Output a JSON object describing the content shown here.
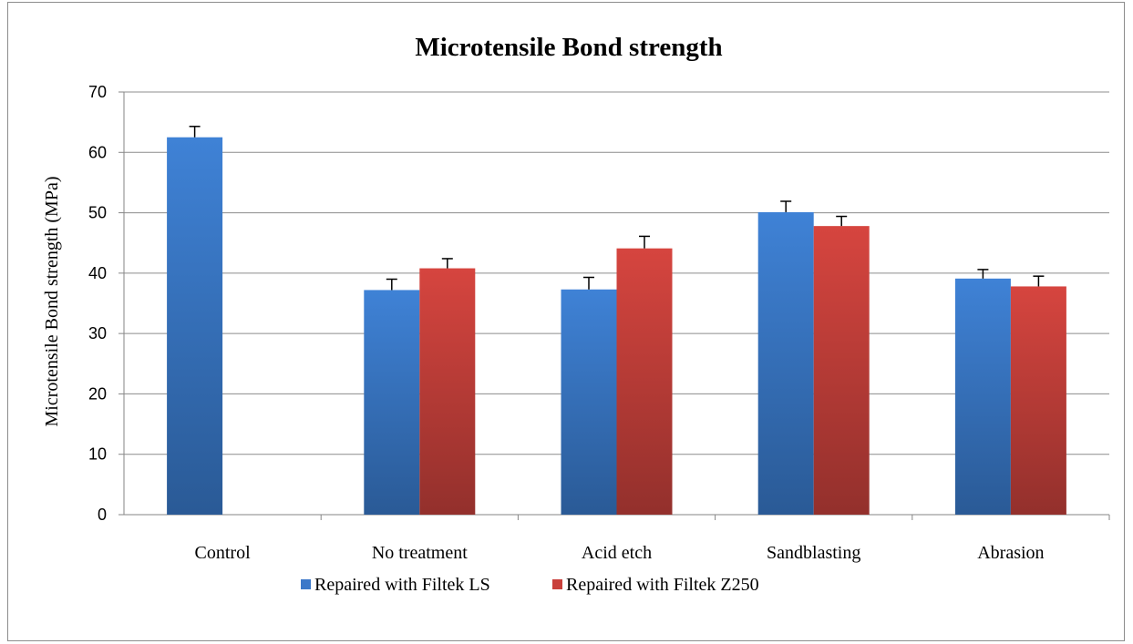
{
  "chart_data": {
    "type": "bar",
    "title": "Microtensile Bond strength",
    "xlabel": "",
    "ylabel": "Microtensile Bond strength (MPa)",
    "ylim": [
      0,
      70
    ],
    "yticks": [
      0,
      10,
      20,
      30,
      40,
      50,
      60,
      70
    ],
    "categories": [
      "Control",
      "No treatment",
      "Acid etch",
      "Sandblasting",
      "Abrasion"
    ],
    "series": [
      {
        "name": "Repaired with Filtek LS",
        "color": "#3b78c9",
        "values": [
          62.5,
          37.2,
          37.3,
          50.1,
          39.1
        ],
        "errors": [
          1.8,
          1.8,
          2.0,
          1.8,
          1.5
        ]
      },
      {
        "name": "Repaired with Filtek Z250",
        "color": "#c9403b",
        "values": [
          null,
          40.8,
          44.1,
          47.8,
          37.8
        ],
        "errors": [
          null,
          1.6,
          2.0,
          1.6,
          1.7
        ]
      }
    ],
    "grid": true,
    "legend": "bottom"
  }
}
